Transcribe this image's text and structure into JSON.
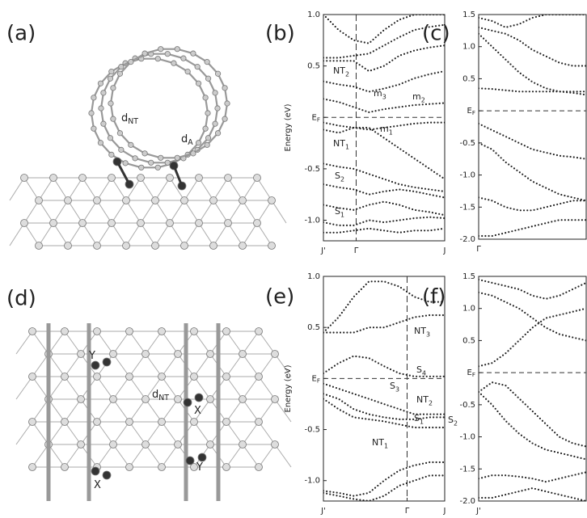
{
  "structures": [
    {
      "label": "(a)",
      "annotations": [
        {
          "text": "d",
          "sub": "NT"
        },
        {
          "text": "d",
          "sub": "A"
        }
      ]
    },
    {
      "label": "(d)",
      "annotations": [
        {
          "text": "Y"
        },
        {
          "text": "d",
          "sub": "NT"
        },
        {
          "text": "X"
        },
        {
          "text": "Y"
        },
        {
          "text": "X"
        }
      ]
    }
  ],
  "chart_data": [
    {
      "type": "line",
      "label": "(b)",
      "ylabel": "Energy (eV)",
      "color": "#222222",
      "xlim": [
        0,
        1
      ],
      "xticks": [
        {
          "value": 0,
          "label": "J'"
        },
        {
          "value": 0.27,
          "label": "Γ"
        },
        {
          "value": 1,
          "label": "J"
        }
      ],
      "ylim": [
        -1.2,
        1.0
      ],
      "yticks": [
        {
          "value": 1,
          "label": "1.0"
        },
        0.5,
        {
          "value": 0,
          "label": "E",
          "sub": "F"
        },
        -0.5,
        {
          "value": -1,
          "label": "-1.0"
        }
      ],
      "guide_ytick": 2,
      "guide_xtick": 1,
      "x": [
        0,
        0.125,
        0.25,
        0.375,
        0.5,
        0.625,
        0.75,
        0.875,
        1
      ],
      "series": [
        {
          "values": [
            1.0,
            0.85,
            0.75,
            0.72,
            0.85,
            0.95,
            1.0,
            1.0,
            1.0
          ]
        },
        {
          "values": [
            0.58,
            0.58,
            0.6,
            0.62,
            0.7,
            0.78,
            0.85,
            0.88,
            0.9
          ]
        },
        {
          "values": [
            0.55,
            0.55,
            0.55,
            0.45,
            0.5,
            0.6,
            0.65,
            0.68,
            0.7
          ]
        },
        {
          "values": [
            0.35,
            0.32,
            0.3,
            0.25,
            0.28,
            0.32,
            0.38,
            0.42,
            0.45
          ]
        },
        {
          "values": [
            0.18,
            0.15,
            0.1,
            0.05,
            0.08,
            0.1,
            0.12,
            0.13,
            0.14
          ]
        },
        {
          "values": [
            -0.05,
            -0.08,
            -0.1,
            -0.12,
            -0.1,
            -0.08,
            -0.06,
            -0.05,
            -0.05
          ]
        },
        {
          "values": [
            -0.12,
            -0.15,
            -0.1,
            -0.1,
            -0.2,
            -0.3,
            -0.4,
            -0.5,
            -0.6
          ]
        },
        {
          "values": [
            -0.45,
            -0.48,
            -0.5,
            -0.55,
            -0.6,
            -0.65,
            -0.68,
            -0.7,
            -0.72
          ]
        },
        {
          "values": [
            -0.65,
            -0.68,
            -0.7,
            -0.75,
            -0.72,
            -0.7,
            -0.72,
            -0.75,
            -0.78
          ]
        },
        {
          "values": [
            -0.85,
            -0.88,
            -0.9,
            -0.85,
            -0.82,
            -0.85,
            -0.9,
            -0.92,
            -0.95
          ]
        },
        {
          "values": [
            -1.02,
            -1.05,
            -1.05,
            -1.0,
            -1.02,
            -1.0,
            -0.98,
            -0.97,
            -0.98
          ]
        },
        {
          "values": [
            -1.12,
            -1.12,
            -1.1,
            -1.08,
            -1.1,
            -1.12,
            -1.1,
            -1.1,
            -1.08
          ]
        }
      ],
      "annotations": [
        {
          "text": "NT",
          "sub": "2"
        },
        {
          "text": "m",
          "sub": "3"
        },
        {
          "text": "m",
          "sub": "2"
        },
        {
          "text": "m",
          "sub": "1"
        },
        {
          "text": "NT",
          "sub": "1"
        },
        {
          "text": "S",
          "sub": "2"
        },
        {
          "text": "S",
          "sub": "1"
        }
      ]
    },
    {
      "type": "line",
      "label": "(c)",
      "color": "#222222",
      "xlim": [
        0,
        1
      ],
      "xticks": [
        {
          "value": 0,
          "label": "Γ"
        }
      ],
      "ylim": [
        -2.0,
        1.5
      ],
      "yticks": [
        1.5,
        {
          "value": 1,
          "label": "1.0"
        },
        0.5,
        {
          "value": 0,
          "label": "E",
          "sub": "F"
        },
        -0.5,
        {
          "value": -1,
          "label": "-1.0"
        },
        -1.5,
        {
          "value": -2,
          "label": "-2.0"
        }
      ],
      "guide_ytick": 3,
      "guide_xtick": null,
      "x": [
        0,
        0.125,
        0.25,
        0.375,
        0.5,
        0.625,
        0.75,
        0.875,
        1
      ],
      "series": [
        {
          "values": [
            1.45,
            1.4,
            1.3,
            1.35,
            1.45,
            1.5,
            1.5,
            1.5,
            1.5
          ]
        },
        {
          "values": [
            1.3,
            1.25,
            1.2,
            1.1,
            0.95,
            0.85,
            0.75,
            0.7,
            0.7
          ]
        },
        {
          "values": [
            1.2,
            1.0,
            0.8,
            0.6,
            0.45,
            0.35,
            0.3,
            0.28,
            0.25
          ]
        },
        {
          "values": [
            0.35,
            0.34,
            0.32,
            0.3,
            0.3,
            0.3,
            0.3,
            0.3,
            0.3
          ]
        },
        {
          "values": [
            -0.2,
            -0.3,
            -0.4,
            -0.5,
            -0.6,
            -0.65,
            -0.7,
            -0.72,
            -0.75
          ]
        },
        {
          "values": [
            -0.5,
            -0.6,
            -0.8,
            -0.95,
            -1.1,
            -1.2,
            -1.3,
            -1.35,
            -1.4
          ]
        },
        {
          "values": [
            -1.35,
            -1.4,
            -1.5,
            -1.55,
            -1.55,
            -1.5,
            -1.45,
            -1.4,
            -1.4
          ]
        },
        {
          "values": [
            -1.95,
            -1.95,
            -1.9,
            -1.85,
            -1.8,
            -1.75,
            -1.7,
            -1.7,
            -1.7
          ]
        }
      ],
      "annotations": []
    },
    {
      "type": "line",
      "label": "(e)",
      "ylabel": "Energy (eV)",
      "color": "#222222",
      "xlim": [
        0,
        1
      ],
      "xticks": [
        {
          "value": 0,
          "label": "J'"
        },
        {
          "value": 0.69,
          "label": "Γ"
        },
        {
          "value": 1,
          "label": "J"
        }
      ],
      "ylim": [
        -1.2,
        1.0
      ],
      "yticks": [
        {
          "value": 1,
          "label": "1.0"
        },
        0.5,
        {
          "value": 0,
          "label": "E",
          "sub": "F"
        },
        -0.5,
        {
          "value": -1,
          "label": "-1.0"
        }
      ],
      "guide_ytick": 2,
      "guide_xtick": 1,
      "x": [
        0,
        0.125,
        0.25,
        0.375,
        0.5,
        0.625,
        0.75,
        0.875,
        1
      ],
      "series": [
        {
          "values": [
            0.45,
            0.6,
            0.8,
            0.95,
            0.95,
            0.9,
            0.8,
            0.75,
            0.75
          ]
        },
        {
          "values": [
            0.45,
            0.45,
            0.45,
            0.5,
            0.5,
            0.55,
            0.6,
            0.62,
            0.62
          ]
        },
        {
          "values": [
            0.05,
            0.15,
            0.22,
            0.2,
            0.12,
            0.05,
            0.02,
            0.02,
            0.02
          ]
        },
        {
          "values": [
            -0.05,
            -0.1,
            -0.15,
            -0.2,
            -0.25,
            -0.3,
            -0.35,
            -0.35,
            -0.35
          ]
        },
        {
          "values": [
            -0.15,
            -0.2,
            -0.3,
            -0.35,
            -0.38,
            -0.4,
            -0.4,
            -0.38,
            -0.38
          ]
        },
        {
          "values": [
            -0.2,
            -0.3,
            -0.38,
            -0.4,
            -0.42,
            -0.45,
            -0.48,
            -0.48,
            -0.48
          ]
        },
        {
          "values": [
            -1.1,
            -1.12,
            -1.15,
            -1.12,
            -1.0,
            -0.9,
            -0.85,
            -0.82,
            -0.82
          ]
        },
        {
          "values": [
            -1.12,
            -1.15,
            -1.18,
            -1.2,
            -1.15,
            -1.05,
            -1.0,
            -0.95,
            -0.95
          ]
        }
      ],
      "annotations": [
        {
          "text": "NT",
          "sub": "3"
        },
        {
          "text": "S",
          "sub": "4"
        },
        {
          "text": "S",
          "sub": "3"
        },
        {
          "text": "NT",
          "sub": "2"
        },
        {
          "text": "S",
          "sub": "2"
        },
        {
          "text": "S",
          "sub": "1"
        },
        {
          "text": "NT",
          "sub": "1"
        }
      ]
    },
    {
      "type": "line",
      "label": "(f)",
      "color": "#222222",
      "xlim": [
        0,
        1
      ],
      "xticks": [
        {
          "value": 0,
          "label": "J'"
        }
      ],
      "ylim": [
        -2.0,
        1.5
      ],
      "yticks": [
        1.5,
        {
          "value": 1,
          "label": "1.0"
        },
        0.5,
        {
          "value": 0,
          "label": "E",
          "sub": "F"
        },
        -0.5,
        {
          "value": -1,
          "label": "-1.0"
        },
        -1.5,
        {
          "value": -2,
          "label": "-2.0"
        }
      ],
      "guide_ytick": 3,
      "guide_xtick": null,
      "x": [
        0,
        0.125,
        0.25,
        0.375,
        0.5,
        0.625,
        0.75,
        0.875,
        1
      ],
      "series": [
        {
          "values": [
            1.45,
            1.4,
            1.35,
            1.3,
            1.2,
            1.15,
            1.2,
            1.3,
            1.4
          ]
        },
        {
          "values": [
            1.25,
            1.2,
            1.1,
            1.0,
            0.85,
            0.7,
            0.6,
            0.55,
            0.5
          ]
        },
        {
          "values": [
            0.1,
            0.15,
            0.3,
            0.5,
            0.7,
            0.85,
            0.9,
            0.95,
            1.0
          ]
        },
        {
          "values": [
            -0.3,
            -0.15,
            -0.2,
            -0.4,
            -0.6,
            -0.8,
            -1.0,
            -1.1,
            -1.15
          ]
        },
        {
          "values": [
            -0.3,
            -0.5,
            -0.75,
            -0.95,
            -1.1,
            -1.2,
            -1.25,
            -1.3,
            -1.35
          ]
        },
        {
          "values": [
            -1.65,
            -1.6,
            -1.6,
            -1.62,
            -1.65,
            -1.7,
            -1.65,
            -1.6,
            -1.55
          ]
        },
        {
          "values": [
            -1.95,
            -1.95,
            -1.9,
            -1.85,
            -1.8,
            -1.85,
            -1.9,
            -1.95,
            -2.0
          ]
        }
      ],
      "annotations": []
    }
  ]
}
